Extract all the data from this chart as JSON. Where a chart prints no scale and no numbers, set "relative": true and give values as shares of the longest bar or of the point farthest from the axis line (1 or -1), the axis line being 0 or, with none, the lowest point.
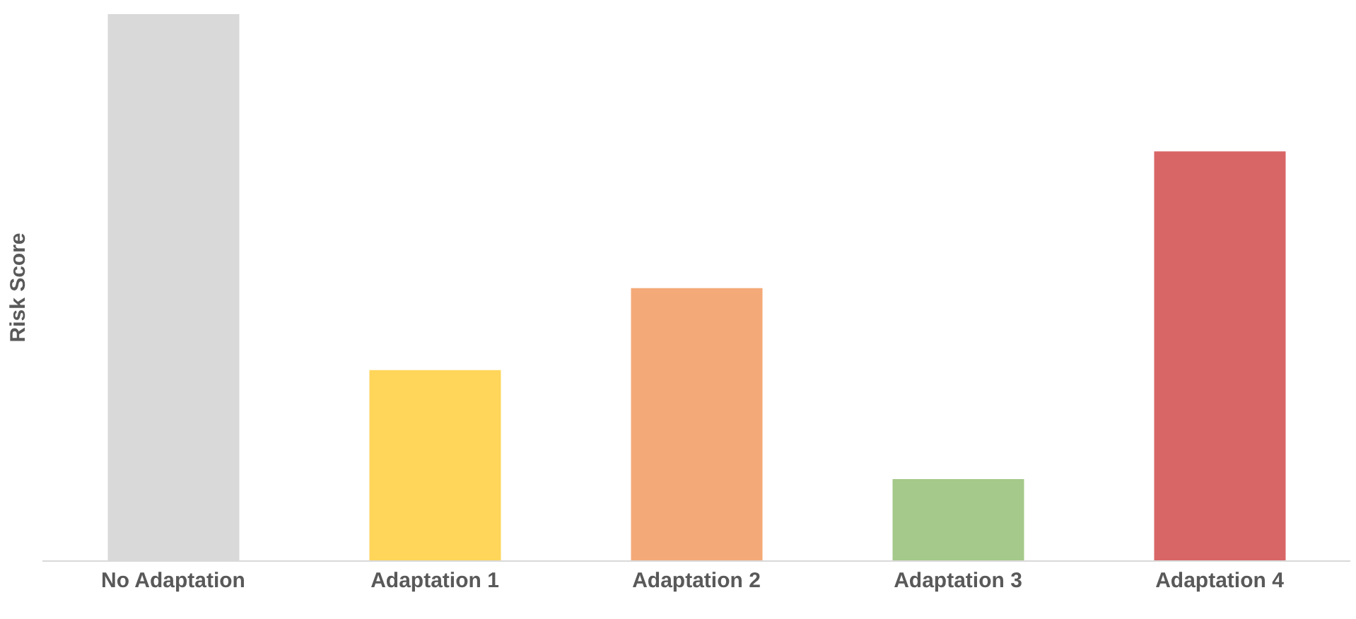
{
  "chart_data": {
    "type": "bar",
    "ylabel": "Risk Score",
    "relative": true,
    "categories": [
      "No Adaptation",
      "Adaptation 1",
      "Adaptation 2",
      "Adaptation 3",
      "Adaptation 4"
    ],
    "values": [
      1,
      0.349,
      0.499,
      0.15,
      0.749
    ],
    "colors": [
      "#d9d9d9",
      "#ffd55a",
      "#f4aa78",
      "#a5c98a",
      "#d96666"
    ],
    "grid": false,
    "legend": false
  }
}
